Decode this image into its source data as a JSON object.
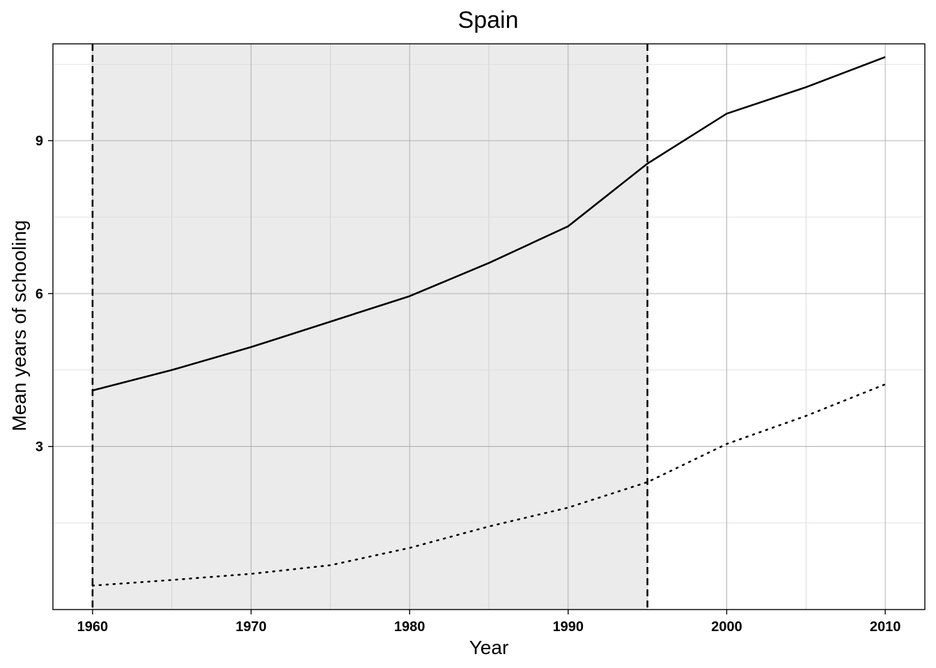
{
  "chart_data": {
    "type": "line",
    "title": "Spain",
    "xlabel": "Year",
    "ylabel": "Mean years of schooling",
    "xlim": [
      1957.5,
      2012.5
    ],
    "ylim": [
      -0.2,
      10.9
    ],
    "x_ticks": [
      1960,
      1970,
      1980,
      1990,
      2000,
      2010
    ],
    "x_tick_labels": [
      "1960",
      "1970",
      "1980",
      "1990",
      "2000",
      "2010"
    ],
    "x_minor_ticks": [
      1965,
      1975,
      1985,
      1995,
      2005
    ],
    "y_ticks": [
      3,
      6,
      9
    ],
    "y_tick_labels": [
      "3",
      "6",
      "9"
    ],
    "y_minor_ticks": [
      1.5,
      4.5,
      7.5,
      10.5
    ],
    "grid": true,
    "shaded_region": {
      "x_start": 1960,
      "x_end": 1995,
      "color": "#ebebeb"
    },
    "vlines": [
      1960,
      1995
    ],
    "series": [
      {
        "style": "solid",
        "x": [
          1960,
          1965,
          1970,
          1975,
          1980,
          1985,
          1990,
          1995,
          2000,
          2005,
          2010
        ],
        "values": [
          4.1,
          4.5,
          4.95,
          5.45,
          5.95,
          6.6,
          7.32,
          8.55,
          9.53,
          10.05,
          10.64
        ]
      },
      {
        "style": "dotted",
        "x": [
          1960,
          1965,
          1970,
          1975,
          1980,
          1985,
          1990,
          1995,
          2000,
          2005,
          2010
        ],
        "values": [
          0.27,
          0.38,
          0.5,
          0.67,
          1.01,
          1.43,
          1.8,
          2.3,
          3.05,
          3.6,
          4.22
        ]
      }
    ]
  }
}
